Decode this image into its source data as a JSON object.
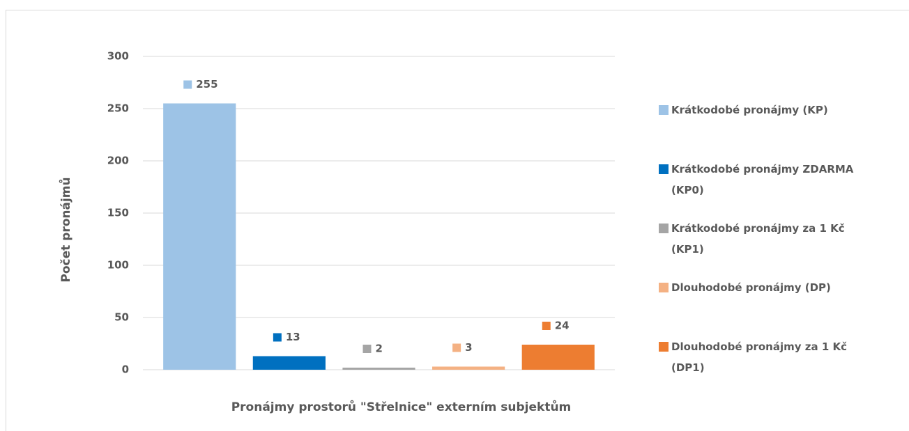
{
  "chart_data": {
    "type": "bar",
    "categories": [
      "Pronájmy prostorů \"Střelnice\" externím subjektům"
    ],
    "y_label": "Počet pronájmů",
    "series": [
      {
        "name": "Krátkodobé pronájmy (KP)",
        "color": "#9dc3e6",
        "values": [
          255
        ]
      },
      {
        "name": "Krátkodobé pronájmy ZDARMA (KP0)",
        "color": "#0070c0",
        "values": [
          13
        ]
      },
      {
        "name": "Krátkodobé pronájmy za 1 Kč (KP1)",
        "color": "#a5a5a5",
        "values": [
          2
        ]
      },
      {
        "name": "Dlouhodobé pronájmy (DP)",
        "color": "#f4b183",
        "values": [
          3
        ]
      },
      {
        "name": "Dlouhodobé pronájmy za 1 Kč (DP1)",
        "color": "#ed7d31",
        "values": [
          24
        ]
      }
    ],
    "ylim": [
      0,
      300
    ],
    "yticks": [
      0,
      50,
      100,
      150,
      200,
      250,
      300
    ],
    "grid": true,
    "legend": "right"
  }
}
